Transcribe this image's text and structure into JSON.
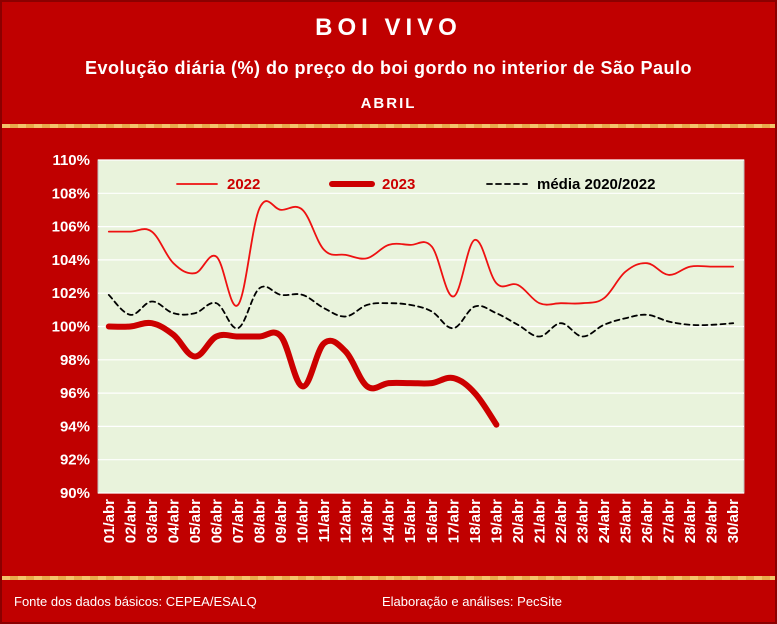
{
  "header": {
    "title": "BOI VIVO",
    "subtitle": "Evolução diária (%) do preço do boi gordo no interior de São Paulo",
    "month": "ABRIL"
  },
  "footer": {
    "source": "Fonte dos dados básicos: CEPEA/ESALQ",
    "credits": "Elaboração e análises: PecSite"
  },
  "colors": {
    "frame": "#c00000",
    "plot_bg": "#e9f3dc",
    "series_2022": "#ee1111",
    "series_2023": "#cc0000",
    "series_media": "#000000"
  },
  "chart_data": {
    "type": "line",
    "categories": [
      "01/abr",
      "02/abr",
      "03/abr",
      "04/abr",
      "05/abr",
      "06/abr",
      "07/abr",
      "08/abr",
      "09/abr",
      "10/abr",
      "11/abr",
      "12/abr",
      "13/abr",
      "14/abr",
      "15/abr",
      "16/abr",
      "17/abr",
      "18/abr",
      "19/abr",
      "20/abr",
      "21/abr",
      "22/abr",
      "23/abr",
      "24/abr",
      "25/abr",
      "26/abr",
      "27/abr",
      "28/abr",
      "29/abr",
      "30/abr"
    ],
    "yticks": [
      "90%",
      "92%",
      "94%",
      "96%",
      "98%",
      "100%",
      "102%",
      "104%",
      "106%",
      "108%",
      "110%"
    ],
    "ylim": [
      90,
      110
    ],
    "grid": "horizontal",
    "legend_position": "top",
    "series": [
      {
        "name": "2022",
        "style": "solid-thin",
        "values": [
          105.7,
          105.7,
          105.7,
          103.8,
          103.2,
          104.2,
          101.3,
          107.1,
          107.0,
          107.0,
          104.6,
          104.3,
          104.1,
          104.9,
          104.9,
          104.8,
          101.8,
          105.2,
          102.6,
          102.5,
          101.4,
          101.4,
          101.4,
          101.7,
          103.3,
          103.8,
          103.1,
          103.6,
          103.6,
          103.6
        ]
      },
      {
        "name": "2023",
        "style": "solid-thick",
        "values": [
          100.0,
          100.0,
          100.2,
          99.5,
          98.2,
          99.4,
          99.4,
          99.4,
          99.4,
          96.4,
          99.0,
          98.5,
          96.4,
          96.6,
          96.6,
          96.6,
          96.9,
          96.0,
          94.1,
          null,
          null,
          null,
          null,
          null,
          null,
          null,
          null,
          null,
          null,
          null
        ]
      },
      {
        "name": "média 2020/2022",
        "style": "dashed",
        "values": [
          101.9,
          100.7,
          101.5,
          100.8,
          100.8,
          101.4,
          99.9,
          102.3,
          101.9,
          101.9,
          101.1,
          100.6,
          101.3,
          101.4,
          101.3,
          100.9,
          99.9,
          101.2,
          100.8,
          100.1,
          99.4,
          100.2,
          99.4,
          100.1,
          100.5,
          100.7,
          100.3,
          100.1,
          100.1,
          100.2
        ]
      }
    ]
  }
}
